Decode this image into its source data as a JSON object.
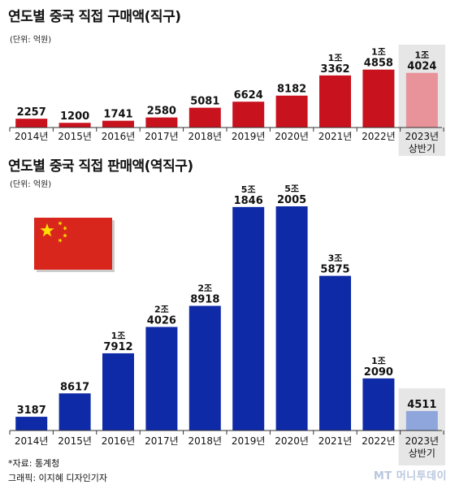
{
  "chart_data": [
    {
      "type": "bar",
      "title": "연도별 중국 직접 구매액(직구)",
      "unit": "(단위: 억원)",
      "categories": [
        "2014년",
        "2015년",
        "2016년",
        "2017년",
        "2018년",
        "2019년",
        "2020년",
        "2021년",
        "2022년",
        "2023년 상반기"
      ],
      "values": [
        2257,
        1200,
        1741,
        2580,
        5081,
        6624,
        8182,
        13362,
        14858,
        14024
      ],
      "value_labels": [
        [
          "2257"
        ],
        [
          "1200"
        ],
        [
          "1741"
        ],
        [
          "2580"
        ],
        [
          "5081"
        ],
        [
          "6624"
        ],
        [
          "8182"
        ],
        [
          "1조",
          "3362"
        ],
        [
          "1조",
          "4858"
        ],
        [
          "1조",
          "4024"
        ]
      ],
      "colors": [
        "#c8121e",
        "#c8121e",
        "#c8121e",
        "#c8121e",
        "#c8121e",
        "#c8121e",
        "#c8121e",
        "#c8121e",
        "#c8121e",
        "#e8929a"
      ],
      "highlight_last": true
    },
    {
      "type": "bar",
      "title": "연도별 중국 직접 판매액(역직구)",
      "unit": "(단위: 억원)",
      "categories": [
        "2014년",
        "2015년",
        "2016년",
        "2017년",
        "2018년",
        "2019년",
        "2020년",
        "2021년",
        "2022년",
        "2023년 상반기"
      ],
      "values": [
        3187,
        8617,
        17912,
        24026,
        28918,
        51846,
        52005,
        35875,
        12090,
        4511
      ],
      "value_labels": [
        [
          "3187"
        ],
        [
          "8617"
        ],
        [
          "1조",
          "7912"
        ],
        [
          "2조",
          "4026"
        ],
        [
          "2조",
          "8918"
        ],
        [
          "5조",
          "1846"
        ],
        [
          "5조",
          "2005"
        ],
        [
          "3조",
          "5875"
        ],
        [
          "1조",
          "2090"
        ],
        [
          "4511"
        ]
      ],
      "colors": [
        "#0f2aa6",
        "#0f2aa6",
        "#0f2aa6",
        "#0f2aa6",
        "#0f2aa6",
        "#0f2aa6",
        "#0f2aa6",
        "#0f2aa6",
        "#0f2aa6",
        "#8ea6dc"
      ],
      "highlight_last": true
    }
  ],
  "footer": {
    "source": "*자료: 통계청",
    "credit": "그래픽: 이지혜 디자인기자",
    "watermark": "MT 머니투데이"
  },
  "colors": {
    "china_red": "#d8261c",
    "china_gold": "#ffde00",
    "highlight_bg": "#e6e6e6"
  }
}
